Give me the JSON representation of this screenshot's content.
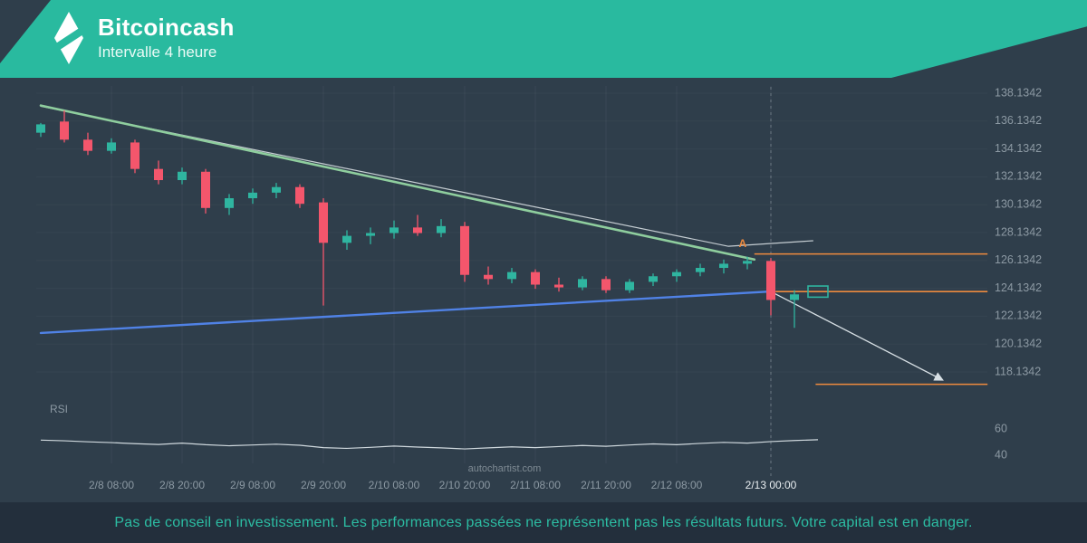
{
  "header": {
    "title": "Bitcoincash",
    "subtitle": "Intervalle 4 heure"
  },
  "footer": {
    "disclaimer": "Pas de conseil en investissement. Les performances passées ne représentent pas les résultats futurs. Votre capital est en danger."
  },
  "watermark": "autochartist.com",
  "colors": {
    "header_teal": "#29BA9F",
    "background": "#2F3E4B",
    "footer_bg": "#232F3C",
    "candle_up": "#2FB5A0",
    "candle_down": "#F4566C",
    "trend_resistance": "#8FCE9E",
    "trend_support": "#5082E6",
    "target_orange": "#EE8A3E",
    "forecast_gray": "#D7DFE4",
    "axis_text": "#8C99A3",
    "axis_text_active": "#E9EEF1",
    "watermark_text": "#7F8B94"
  },
  "chart_data": {
    "type": "candlestick",
    "instrument": "Bitcoincash",
    "interval": "4 heure",
    "pattern": "descending wedge with downside breakout forecast",
    "price_axis": {
      "min": 118.1342,
      "max": 138.1342,
      "tick_step": 2,
      "labels": [
        "138.1342",
        "136.1342",
        "134.1342",
        "132.1342",
        "130.1342",
        "128.1342",
        "126.1342",
        "124.1342",
        "122.1342",
        "120.1342",
        "118.1342"
      ]
    },
    "x_labels": [
      {
        "label": "2/8 08:00",
        "i": 3,
        "active": false
      },
      {
        "label": "2/8 20:00",
        "i": 6,
        "active": false
      },
      {
        "label": "2/9 08:00",
        "i": 9,
        "active": false
      },
      {
        "label": "2/9 20:00",
        "i": 12,
        "active": false
      },
      {
        "label": "2/10 08:00",
        "i": 15,
        "active": false
      },
      {
        "label": "2/10 20:00",
        "i": 18,
        "active": false
      },
      {
        "label": "2/11 08:00",
        "i": 21,
        "active": false
      },
      {
        "label": "2/11 20:00",
        "i": 24,
        "active": false
      },
      {
        "label": "2/12 08:00",
        "i": 27,
        "active": false
      },
      {
        "label": "2/13 00:00",
        "i": 31,
        "active": true
      }
    ],
    "candles_format": "[open, high, low, close]",
    "candles": [
      [
        135.3,
        136.0,
        135.0,
        135.9
      ],
      [
        136.1,
        136.9,
        134.6,
        134.8
      ],
      [
        134.8,
        135.3,
        133.7,
        134.0
      ],
      [
        134.0,
        134.9,
        133.8,
        134.6
      ],
      [
        134.6,
        134.8,
        132.4,
        132.7
      ],
      [
        132.7,
        133.3,
        131.6,
        131.9
      ],
      [
        131.9,
        132.8,
        131.6,
        132.5
      ],
      [
        132.5,
        132.7,
        129.5,
        129.9
      ],
      [
        129.9,
        130.9,
        129.4,
        130.6
      ],
      [
        130.6,
        131.3,
        130.2,
        131.0
      ],
      [
        131.0,
        131.7,
        130.6,
        131.4
      ],
      [
        131.4,
        131.6,
        129.9,
        130.2
      ],
      [
        130.3,
        130.6,
        122.9,
        127.4
      ],
      [
        127.4,
        128.3,
        126.9,
        127.9
      ],
      [
        127.9,
        128.5,
        127.3,
        128.1
      ],
      [
        128.1,
        129.0,
        127.7,
        128.5
      ],
      [
        128.5,
        129.4,
        127.9,
        128.1
      ],
      [
        128.1,
        129.1,
        127.8,
        128.6
      ],
      [
        128.6,
        128.9,
        124.6,
        125.1
      ],
      [
        125.1,
        125.7,
        124.4,
        124.8
      ],
      [
        124.8,
        125.6,
        124.5,
        125.3
      ],
      [
        125.3,
        125.5,
        124.1,
        124.4
      ],
      [
        124.4,
        124.9,
        123.9,
        124.2
      ],
      [
        124.2,
        125.0,
        124.0,
        124.8
      ],
      [
        124.8,
        125.0,
        123.8,
        124.0
      ],
      [
        124.0,
        124.8,
        123.8,
        124.6
      ],
      [
        124.6,
        125.2,
        124.3,
        125.0
      ],
      [
        125.0,
        125.5,
        124.6,
        125.3
      ],
      [
        125.3,
        125.9,
        125.0,
        125.6
      ],
      [
        125.6,
        126.2,
        125.2,
        125.9
      ],
      [
        125.9,
        126.4,
        125.5,
        126.1
      ],
      [
        126.1,
        126.3,
        122.2,
        123.3
      ],
      [
        123.3,
        124.0,
        121.3,
        123.7
      ]
    ],
    "forecast_candle": {
      "open": 123.5,
      "close": 124.3,
      "i": 33
    },
    "trendlines": [
      {
        "name": "resistance",
        "color_key": "trend_resistance",
        "i1": 0,
        "p1": 137.25,
        "i2": 30.3,
        "p2": 126.2,
        "width": 2.6
      },
      {
        "name": "support",
        "color_key": "trend_support",
        "i1": 0,
        "p1": 120.93,
        "i2": 31,
        "p2": 123.91,
        "width": 2.4
      }
    ],
    "gray_lines": [
      {
        "name": "pattern-upper-boundary",
        "points_ip": [
          [
            0,
            137.2
          ],
          [
            29.2,
            127.15
          ],
          [
            32.8,
            127.55
          ]
        ]
      }
    ],
    "forecast_arrow": {
      "from_ip": [
        31,
        123.9
      ],
      "to_ip": [
        38.3,
        117.55
      ]
    },
    "target_lines": [
      {
        "name": "upper-target",
        "p": 126.6,
        "i1": 30.3,
        "i2": 40.2
      },
      {
        "name": "breakout-level",
        "p": 123.9,
        "i1": 31.2,
        "i2": 40.2
      },
      {
        "name": "lower-target",
        "p": 117.25,
        "i1": 32.9,
        "i2": 40.2
      }
    ],
    "pattern_label": {
      "text": "A",
      "i": 29.8,
      "p": 127.1
    },
    "dashed_line_i": 31,
    "rsi": {
      "label": "RSI",
      "axis_labels": [
        {
          "text": "60",
          "value": 60
        },
        {
          "text": "40",
          "value": 40
        }
      ],
      "values": [
        51.5,
        51,
        50.2,
        49.6,
        48.8,
        48.2,
        49.2,
        48,
        47.2,
        47.8,
        48.4,
        47.6,
        45.8,
        45.2,
        46,
        47,
        46.2,
        45.6,
        44.8,
        45.6,
        46.4,
        45.8,
        46.6,
        47.4,
        46.8,
        47.8,
        48.6,
        48,
        49,
        49.8,
        49.2,
        50.4,
        51.2,
        51.8
      ]
    }
  }
}
